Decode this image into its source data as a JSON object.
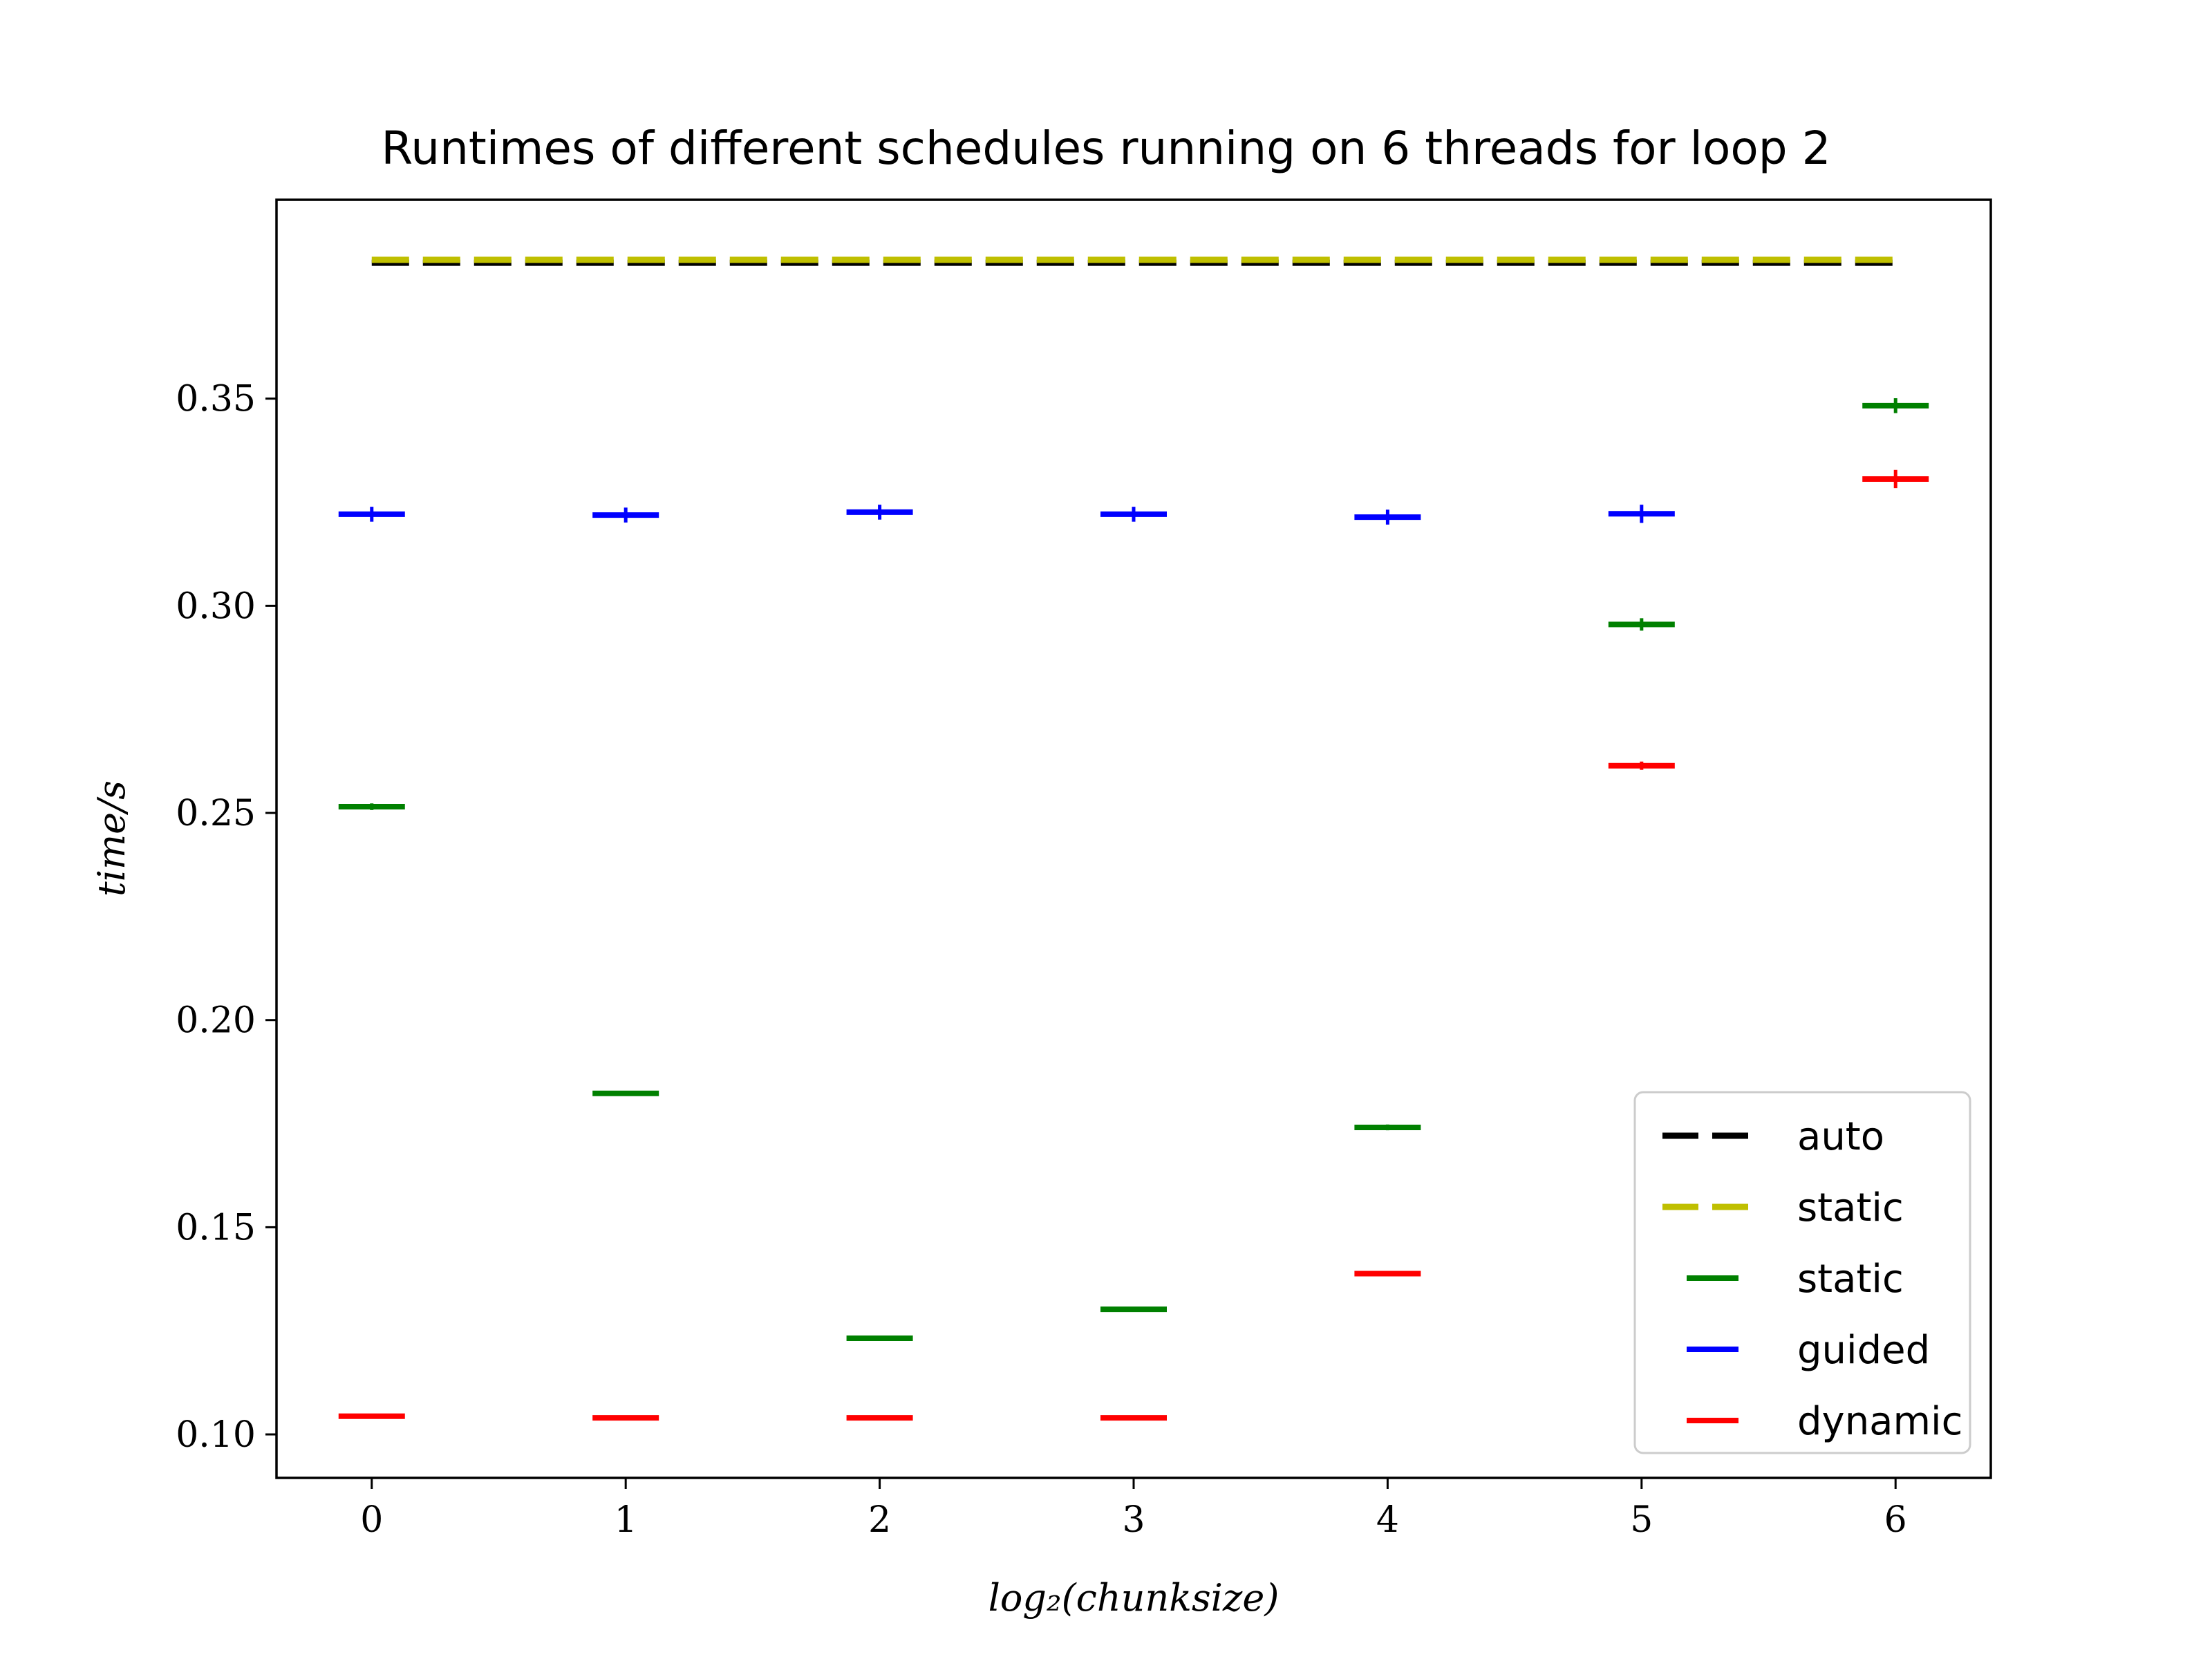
{
  "chart_data": {
    "type": "scatter",
    "title": "Runtimes of different schedules running on 6 threads for loop 2",
    "xlabel": "log₂(chunksize)",
    "ylabel": "time/s",
    "xlim": [
      -0.375,
      6.375
    ],
    "ylim": [
      0.0895,
      0.398
    ],
    "xticks": [
      0,
      1,
      2,
      3,
      4,
      5,
      6
    ],
    "yticks": [
      0.1,
      0.15,
      0.2,
      0.25,
      0.3,
      0.35
    ],
    "ytick_labels": [
      "0.10",
      "0.15",
      "0.20",
      "0.25",
      "0.30",
      "0.35"
    ],
    "grid": false,
    "legend_position": "lower-right",
    "baselines": [
      {
        "name": "auto",
        "value": 0.3828,
        "color": "#000000",
        "style": "dashed"
      },
      {
        "name": "static",
        "value": 0.3835,
        "color": "#bfbf00",
        "style": "dashed"
      }
    ],
    "series": [
      {
        "name": "static",
        "color": "#008000",
        "x": [
          0,
          1,
          2,
          3,
          4,
          5,
          6
        ],
        "values": [
          0.2515,
          0.1823,
          0.1232,
          0.1302,
          0.1741,
          0.2955,
          0.3483
        ],
        "errors": [
          0.0008,
          0.0006,
          0.0003,
          0.0003,
          0.0007,
          0.0015,
          0.0018
        ]
      },
      {
        "name": "guided",
        "color": "#0000ff",
        "x": [
          0,
          1,
          2,
          3,
          4,
          5
        ],
        "values": [
          0.3221,
          0.3219,
          0.3226,
          0.3221,
          0.3214,
          0.3222
        ],
        "errors": [
          0.0018,
          0.0018,
          0.0018,
          0.0018,
          0.0018,
          0.0022
        ]
      },
      {
        "name": "dynamic",
        "color": "#ff0000",
        "x": [
          0,
          1,
          2,
          3,
          4,
          5,
          6
        ],
        "values": [
          0.1044,
          0.104,
          0.104,
          0.104,
          0.1388,
          0.2614,
          0.3306
        ],
        "errors": [
          0.0003,
          0.0003,
          0.0003,
          0.0003,
          0.0003,
          0.001,
          0.0022
        ]
      }
    ]
  }
}
